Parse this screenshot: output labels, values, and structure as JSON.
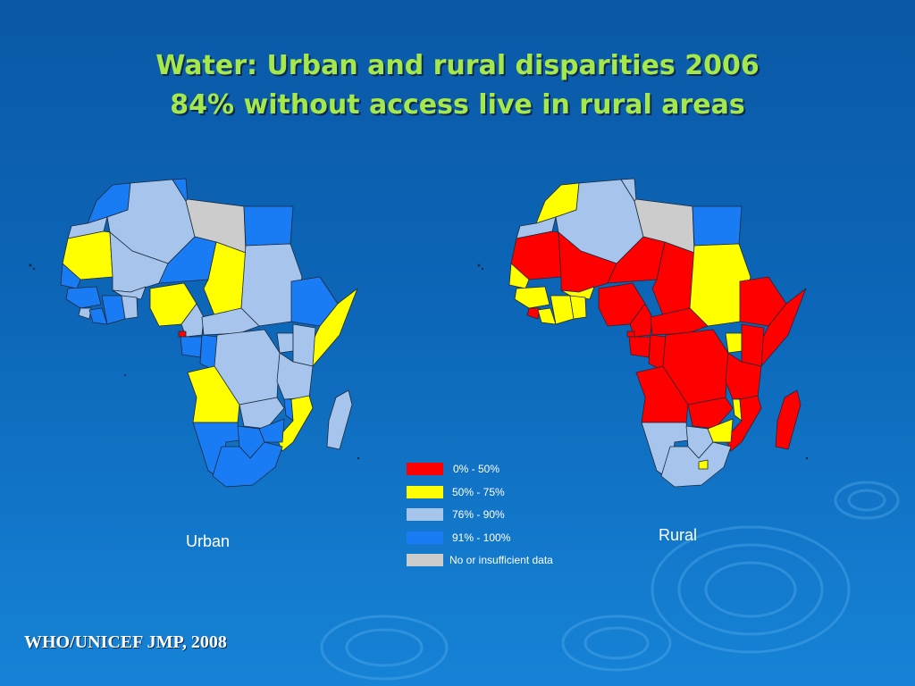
{
  "slide": {
    "title_line1": "Water: Urban and rural disparities 2006",
    "title_line2": "84% without access live in rural areas",
    "source": "WHO/UNICEF JMP, 2008"
  },
  "colors": {
    "title": "#a6e84a",
    "background_top": "#0a59a6",
    "background_bottom": "#1683d6"
  },
  "maps": [
    {
      "label": "Urban"
    },
    {
      "label": "Rural"
    }
  ],
  "legend": [
    {
      "label": "0% - 50%",
      "color": "#ff0000"
    },
    {
      "label": "50% - 75%",
      "color": "#ffff00"
    },
    {
      "label": "76% - 90%",
      "color": "#a6c4ec"
    },
    {
      "label": "91% - 100%",
      "color": "#1a7cf5"
    },
    {
      "label": "No or insufficient data",
      "color": "#cccccc"
    }
  ]
}
